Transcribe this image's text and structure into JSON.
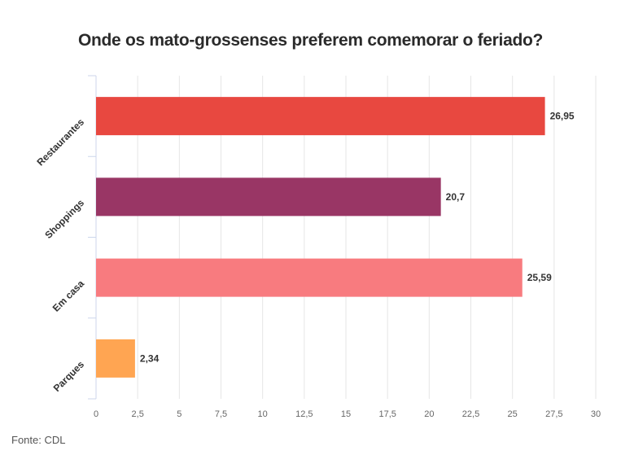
{
  "chart_data": {
    "type": "bar",
    "orientation": "horizontal",
    "title": "Onde os mato-grossenses preferem comemorar o feriado?",
    "categories": [
      "Restaurantes",
      "Shoppings",
      "Em casa",
      "Parques"
    ],
    "values": [
      26.95,
      20.7,
      25.59,
      2.34
    ],
    "data_labels": [
      "26,95",
      "20,7",
      "25,59",
      "2,34"
    ],
    "colors": [
      "#e84840",
      "#993665",
      "#f87b7f",
      "#ffa552"
    ],
    "xlim": [
      0,
      30
    ],
    "xticks": [
      0,
      2.5,
      5,
      7.5,
      10,
      12.5,
      15,
      17.5,
      20,
      22.5,
      25,
      27.5,
      30
    ],
    "xtick_labels": [
      "0",
      "2,5",
      "5",
      "7,5",
      "10",
      "12,5",
      "15",
      "17,5",
      "20",
      "22,5",
      "25",
      "27,5",
      "30"
    ],
    "grid": true,
    "xlabel": "",
    "ylabel": ""
  },
  "source": "Fonte: CDL"
}
